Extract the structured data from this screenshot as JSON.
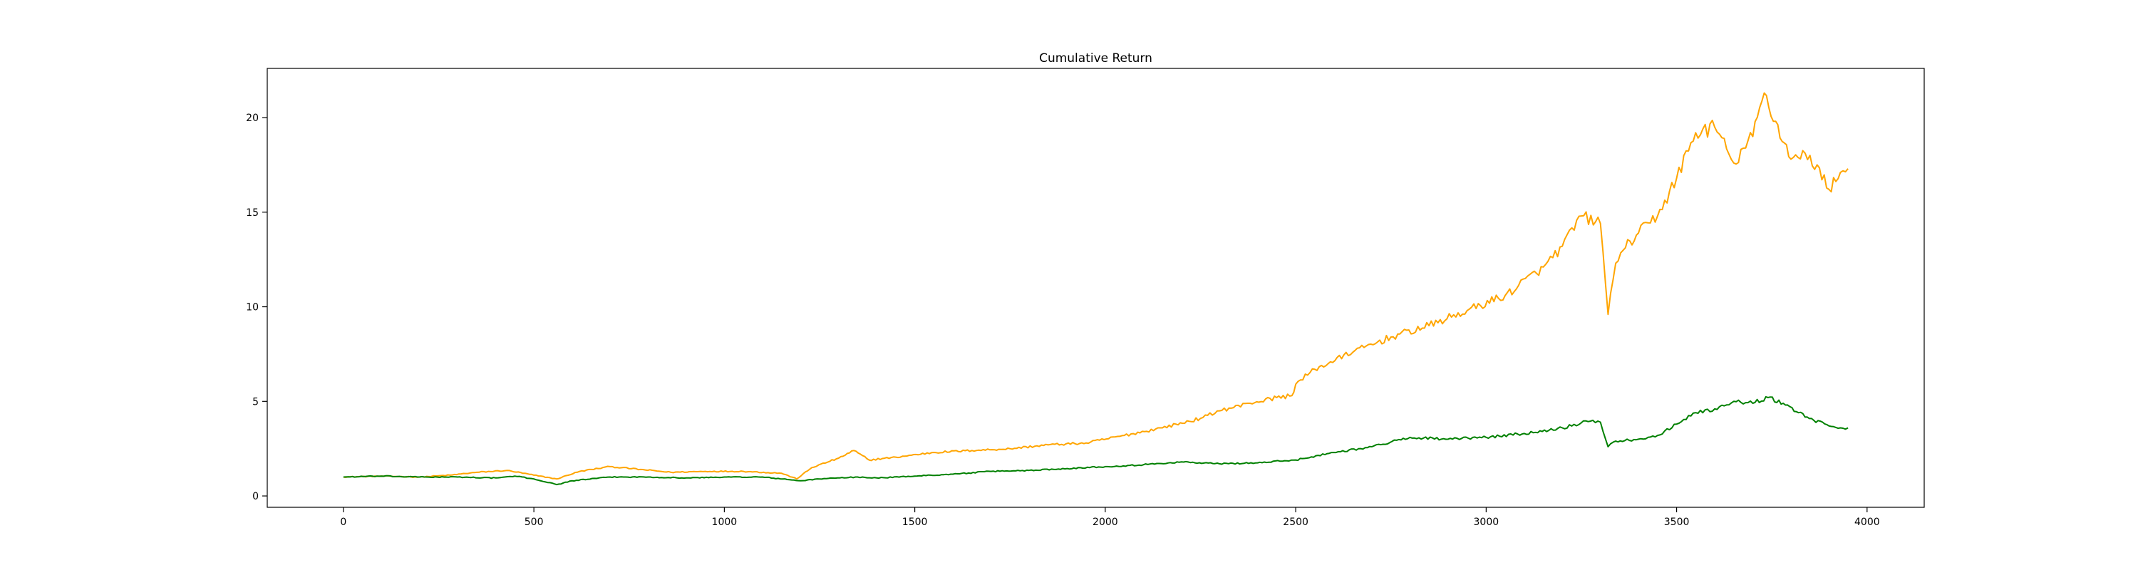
{
  "chart_data": {
    "type": "line",
    "title": "Cumulative Return",
    "xlabel": "",
    "ylabel": "",
    "xlim": [
      -200,
      4150
    ],
    "ylim": [
      -0.6,
      22.6
    ],
    "xticks": [
      0,
      500,
      1000,
      1500,
      2000,
      2500,
      3000,
      3500,
      4000
    ],
    "yticks": [
      0,
      5,
      10,
      15,
      20
    ],
    "grid": false,
    "legend": "none",
    "series": [
      {
        "color": "#ffa500",
        "x": [
          0,
          100,
          200,
          280,
          350,
          430,
          500,
          560,
          620,
          700,
          780,
          860,
          950,
          1050,
          1150,
          1190,
          1230,
          1300,
          1340,
          1380,
          1450,
          1550,
          1650,
          1750,
          1850,
          1950,
          2050,
          2150,
          2250,
          2300,
          2380,
          2450,
          2490,
          2500,
          2550,
          2650,
          2750,
          2850,
          2950,
          3050,
          3150,
          3200,
          3250,
          3300,
          3320,
          3340,
          3360,
          3400,
          3450,
          3500,
          3550,
          3600,
          3650,
          3700,
          3730,
          3760,
          3800,
          3850,
          3900,
          3930,
          3950
        ],
        "y": [
          1.0,
          1.05,
          1.0,
          1.1,
          1.25,
          1.35,
          1.1,
          0.9,
          1.3,
          1.55,
          1.4,
          1.25,
          1.3,
          1.3,
          1.2,
          0.9,
          1.5,
          2.0,
          2.4,
          1.9,
          2.05,
          2.3,
          2.4,
          2.5,
          2.7,
          2.8,
          3.2,
          3.6,
          4.1,
          4.5,
          4.9,
          5.2,
          5.3,
          5.9,
          6.7,
          7.6,
          8.4,
          9.0,
          9.8,
          10.6,
          12.1,
          13.2,
          14.8,
          14.4,
          9.6,
          12.3,
          13.0,
          13.9,
          14.8,
          16.8,
          19.2,
          19.5,
          17.6,
          19.0,
          21.3,
          19.8,
          17.8,
          18.0,
          16.2,
          17.1,
          17.3
        ]
      },
      {
        "color": "#008000",
        "x": [
          0,
          100,
          200,
          300,
          400,
          450,
          500,
          560,
          600,
          700,
          800,
          900,
          1000,
          1100,
          1200,
          1250,
          1350,
          1400,
          1500,
          1600,
          1700,
          1800,
          1900,
          2000,
          2100,
          2200,
          2300,
          2400,
          2500,
          2600,
          2700,
          2800,
          2900,
          3000,
          3100,
          3200,
          3280,
          3300,
          3320,
          3340,
          3400,
          3450,
          3500,
          3550,
          3600,
          3650,
          3700,
          3740,
          3780,
          3820,
          3860,
          3900,
          3930,
          3950
        ],
        "y": [
          1.0,
          1.05,
          1.0,
          1.0,
          0.95,
          1.05,
          0.9,
          0.6,
          0.8,
          1.0,
          1.0,
          0.95,
          1.0,
          1.0,
          0.8,
          0.9,
          1.0,
          0.95,
          1.05,
          1.15,
          1.3,
          1.35,
          1.45,
          1.55,
          1.65,
          1.8,
          1.7,
          1.75,
          1.9,
          2.3,
          2.6,
          3.1,
          3.0,
          3.1,
          3.3,
          3.6,
          4.0,
          3.9,
          2.6,
          2.9,
          3.0,
          3.2,
          3.8,
          4.4,
          4.6,
          5.0,
          4.9,
          5.2,
          4.9,
          4.4,
          4.0,
          3.7,
          3.6,
          3.6
        ]
      }
    ]
  }
}
